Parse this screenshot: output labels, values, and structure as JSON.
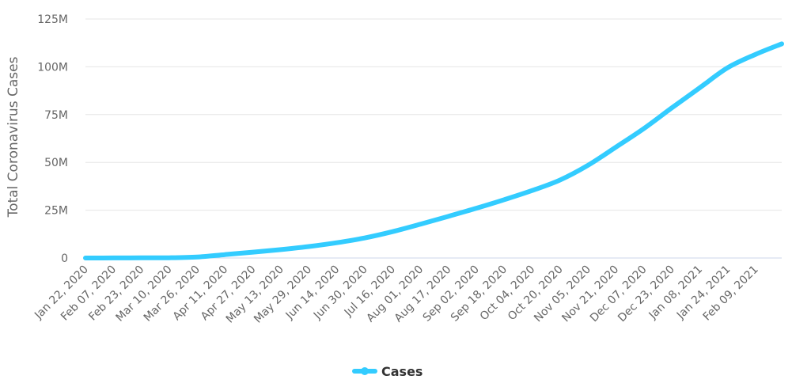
{
  "chart_data": {
    "type": "line",
    "title": "",
    "xlabel": "",
    "ylabel": "Total Coronavirus Cases",
    "ylim": [
      0,
      125000000
    ],
    "y_ticks": [
      0,
      25000000,
      50000000,
      75000000,
      100000000,
      125000000
    ],
    "y_tick_labels": [
      "0",
      "25M",
      "50M",
      "75M",
      "100M",
      "125M"
    ],
    "x_tick_labels": [
      "Jan 22, 2020",
      "Feb 07, 2020",
      "Feb 23, 2020",
      "Mar 10, 2020",
      "Mar 26, 2020",
      "Apr 11, 2020",
      "Apr 27, 2020",
      "May 13, 2020",
      "May 29, 2020",
      "Jun 14, 2020",
      "Jun 30, 2020",
      "Jul 16, 2020",
      "Aug 01, 2020",
      "Aug 17, 2020",
      "Sep 02, 2020",
      "Sep 18, 2020",
      "Oct 04, 2020",
      "Oct 20, 2020",
      "Nov 05, 2020",
      "Nov 21, 2020",
      "Dec 07, 2020",
      "Dec 23, 2020",
      "Jan 08, 2021",
      "Jan 24, 2021",
      "Feb 09, 2021"
    ],
    "x_range": [
      "2020-01-22",
      "2021-02-24"
    ],
    "grid": true,
    "legend_position": "bottom-center",
    "series": [
      {
        "name": "Cases",
        "color": "#33ccff",
        "points": [
          [
            "2020-01-22",
            600
          ],
          [
            "2020-02-07",
            34000
          ],
          [
            "2020-02-23",
            79000
          ],
          [
            "2020-03-10",
            120000
          ],
          [
            "2020-03-26",
            530000
          ],
          [
            "2020-04-11",
            1780000
          ],
          [
            "2020-04-27",
            3060000
          ],
          [
            "2020-05-13",
            4400000
          ],
          [
            "2020-05-29",
            6000000
          ],
          [
            "2020-06-14",
            8000000
          ],
          [
            "2020-06-30",
            10500000
          ],
          [
            "2020-07-16",
            13800000
          ],
          [
            "2020-08-01",
            17700000
          ],
          [
            "2020-08-17",
            21800000
          ],
          [
            "2020-09-02",
            26000000
          ],
          [
            "2020-09-18",
            30500000
          ],
          [
            "2020-10-04",
            35300000
          ],
          [
            "2020-10-20",
            40800000
          ],
          [
            "2020-11-05",
            48500000
          ],
          [
            "2020-11-21",
            58000000
          ],
          [
            "2020-12-07",
            67700000
          ],
          [
            "2020-12-23",
            78500000
          ],
          [
            "2021-01-08",
            89000000
          ],
          [
            "2021-01-24",
            99500000
          ],
          [
            "2021-02-09",
            106500000
          ],
          [
            "2021-02-24",
            112000000
          ]
        ]
      }
    ]
  }
}
